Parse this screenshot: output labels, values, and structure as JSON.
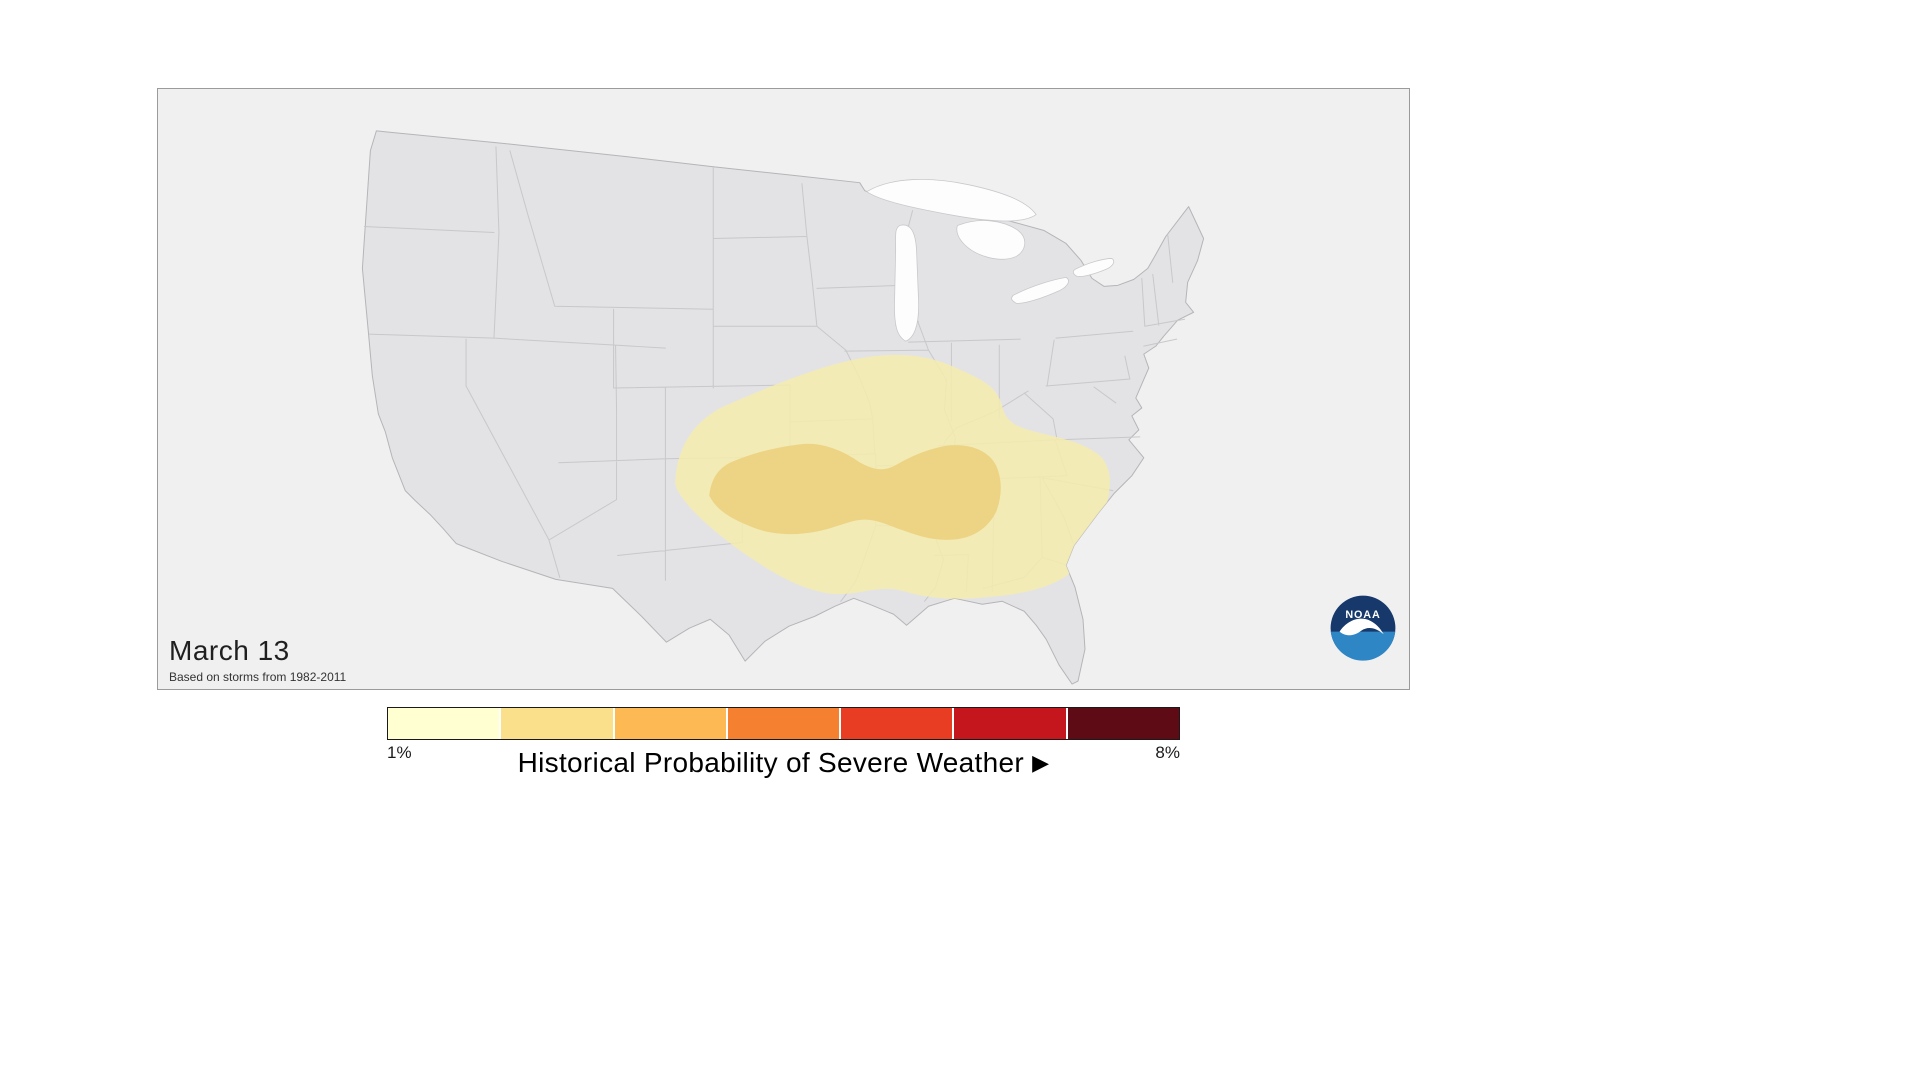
{
  "map_panel": {
    "date_label": "March 13",
    "source_note": "Based on storms from 1982-2011",
    "background": "#f0f0f1",
    "land_color": "#e3e3e5",
    "lake_color": "#fdfdfe",
    "state_border_color": "#c6c6c9",
    "noaa_logo": {
      "label": "NOAA",
      "navy": "#16386B",
      "blue": "#2F86C5"
    }
  },
  "map": {
    "region": "Contiguous United States",
    "hazard_regions": [
      {
        "name": "outer-probability-area",
        "level": "1%",
        "color": "#F6ECAE"
      },
      {
        "name": "inner-probability-area",
        "level": "2%",
        "color": "#ECD27E"
      }
    ]
  },
  "legend": {
    "title": "Historical Probability of Severe Weather",
    "title_arrow": "▶",
    "min_label": "1%",
    "max_label": "8%",
    "colors": [
      "#FFFFD2",
      "#FBE08C",
      "#FDB954",
      "#F58030",
      "#E83C23",
      "#C5161D",
      "#5E0B15"
    ]
  }
}
